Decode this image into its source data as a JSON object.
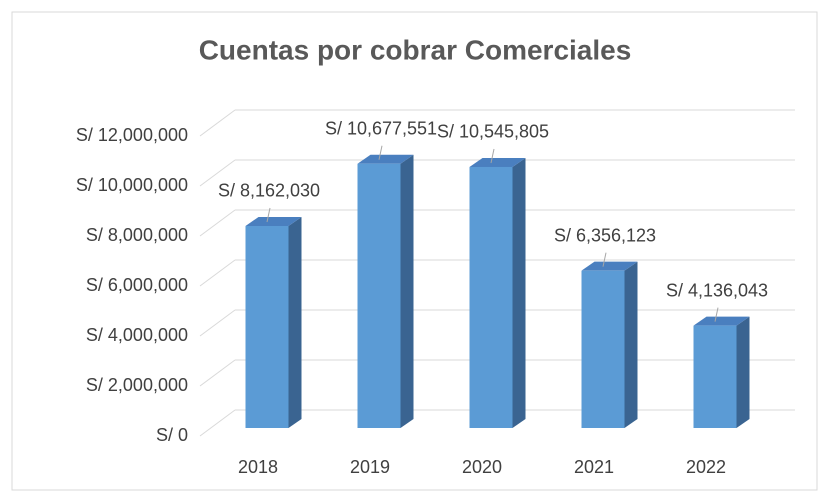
{
  "chart_data": {
    "type": "bar3d",
    "title": "Cuentas por cobrar Comerciales",
    "categories": [
      "2018",
      "2019",
      "2020",
      "2021",
      "2022"
    ],
    "values": [
      8162030,
      10677551,
      10545805,
      6356123,
      4136043
    ],
    "value_labels": [
      "S/ 8,162,030",
      "S/ 10,677,551",
      "S/ 10,545,805",
      "S/ 6,356,123",
      "S/ 4,136,043"
    ],
    "color": "#5b9bd5",
    "ylim": [
      0,
      12000000
    ],
    "yticks": [
      {
        "value": 0,
        "label": "S/ 0"
      },
      {
        "value": 2000000,
        "label": "S/ 2,000,000"
      },
      {
        "value": 4000000,
        "label": "S/ 4,000,000"
      },
      {
        "value": 6000000,
        "label": "S/ 6,000,000"
      },
      {
        "value": 8000000,
        "label": "S/ 8,000,000"
      },
      {
        "value": 10000000,
        "label": "S/ 10,000,000"
      },
      {
        "value": 12000000,
        "label": "S/ 12,000,000"
      }
    ],
    "grid": true
  }
}
